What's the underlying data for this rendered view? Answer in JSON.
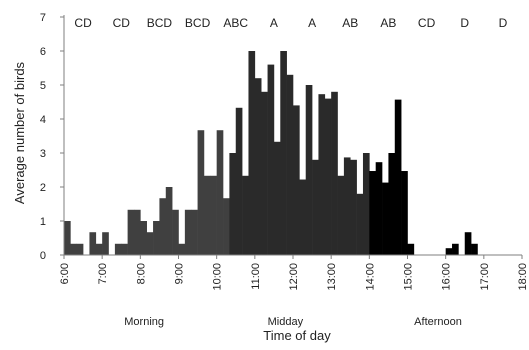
{
  "chart_data": {
    "type": "bar",
    "xlabel": "Time of day",
    "ylabel": "Average number of birds",
    "ylim": [
      0,
      7
    ],
    "y_ticks": [
      0,
      1,
      2,
      3,
      4,
      5,
      6,
      7
    ],
    "x_range_hours": [
      6,
      18
    ],
    "bin_width_hours": 0.16667,
    "x_tick_labels": [
      "6:00",
      "7:00",
      "8:00",
      "9:00",
      "10:00",
      "11:00",
      "12:00",
      "13:00",
      "14:00",
      "15:00",
      "16:00",
      "17:00",
      "18:00"
    ],
    "hour_letters": [
      "CD",
      "CD",
      "BCD",
      "BCD",
      "ABC",
      "A",
      "A",
      "AB",
      "AB",
      "CD",
      "D",
      "D"
    ],
    "periods": [
      {
        "name": "Morning",
        "color": "#404040"
      },
      {
        "name": "Midday",
        "color": "#2a2a2a"
      },
      {
        "name": "Afternoon",
        "color": "#000000"
      }
    ],
    "series": [
      {
        "x": [
          "6:00",
          "6:10",
          "6:20",
          "6:30",
          "6:40",
          "6:50",
          "7:00",
          "7:10",
          "7:20",
          "7:30",
          "7:40",
          "7:50",
          "8:00",
          "8:10",
          "8:20",
          "8:30",
          "8:40",
          "8:50",
          "9:00",
          "9:10",
          "9:20",
          "9:30",
          "9:40",
          "9:50",
          "10:00",
          "10:10",
          "10:20",
          "10:30",
          "10:40",
          "10:50",
          "11:00",
          "11:10",
          "11:20",
          "11:30",
          "11:40",
          "11:50",
          "12:00",
          "12:10",
          "12:20",
          "12:30",
          "12:40",
          "12:50",
          "13:00",
          "13:10",
          "13:20",
          "13:30",
          "13:40",
          "13:50",
          "14:00",
          "14:10",
          "14:20",
          "14:30",
          "14:40",
          "14:50",
          "15:00",
          "15:10",
          "15:20",
          "15:30",
          "15:40",
          "15:50",
          "16:00",
          "16:10",
          "16:20",
          "16:30",
          "16:40",
          "16:50",
          "17:00",
          "17:10",
          "17:20",
          "17:30",
          "17:40",
          "17:50"
        ],
        "values": [
          1.0,
          0.33,
          0.33,
          0,
          0.67,
          0.33,
          0.67,
          0,
          0.33,
          0.33,
          1.33,
          1.33,
          1.0,
          0.67,
          1.0,
          1.67,
          2.0,
          1.33,
          0.33,
          1.33,
          1.33,
          3.67,
          2.33,
          2.33,
          3.67,
          1.67,
          3.0,
          4.33,
          2.33,
          6.0,
          5.2,
          4.8,
          5.6,
          3.33,
          6.0,
          5.3,
          4.4,
          2.22,
          5.0,
          2.8,
          4.73,
          4.6,
          4.8,
          2.33,
          2.87,
          2.8,
          1.8,
          3.0,
          2.47,
          2.73,
          2.13,
          3.0,
          4.57,
          2.47,
          0.33,
          0,
          0,
          0,
          0,
          0,
          0.2,
          0.33,
          0,
          0.67,
          0.33,
          0,
          0,
          0,
          0,
          0,
          0,
          0
        ]
      }
    ]
  }
}
